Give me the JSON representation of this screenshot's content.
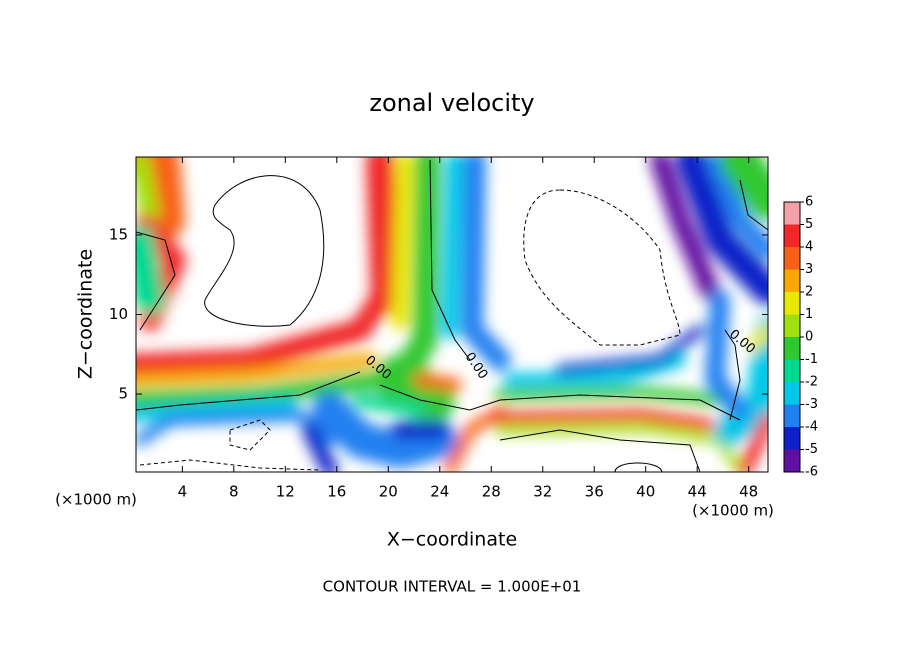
{
  "chart_data": {
    "type": "contour",
    "title": "zonal velocity",
    "xlabel": "X−coordinate",
    "ylabel": "Z−coordinate",
    "x_unit": "(×1000 m)",
    "footer": "CONTOUR INTERVAL = 1.000E+01",
    "contour_label": "0.00",
    "xlim": [
      0.4,
      49.5
    ],
    "ylim": [
      0.1,
      19.9
    ],
    "xticks": [
      4,
      8,
      12,
      16,
      20,
      24,
      28,
      32,
      36,
      40,
      44,
      48
    ],
    "yticks": [
      5,
      10,
      15
    ],
    "colorbar": {
      "levels": [
        6,
        5,
        4,
        3,
        2,
        1,
        0,
        -1,
        -2,
        -3,
        -4,
        -5,
        -6
      ],
      "colors": [
        "#f4a0a8",
        "#f02828",
        "#f86018",
        "#f8a800",
        "#e8e800",
        "#a0e010",
        "#30c830",
        "#00d890",
        "#00c8e8",
        "#2080f0",
        "#1020c8",
        "#6010a0"
      ]
    }
  }
}
